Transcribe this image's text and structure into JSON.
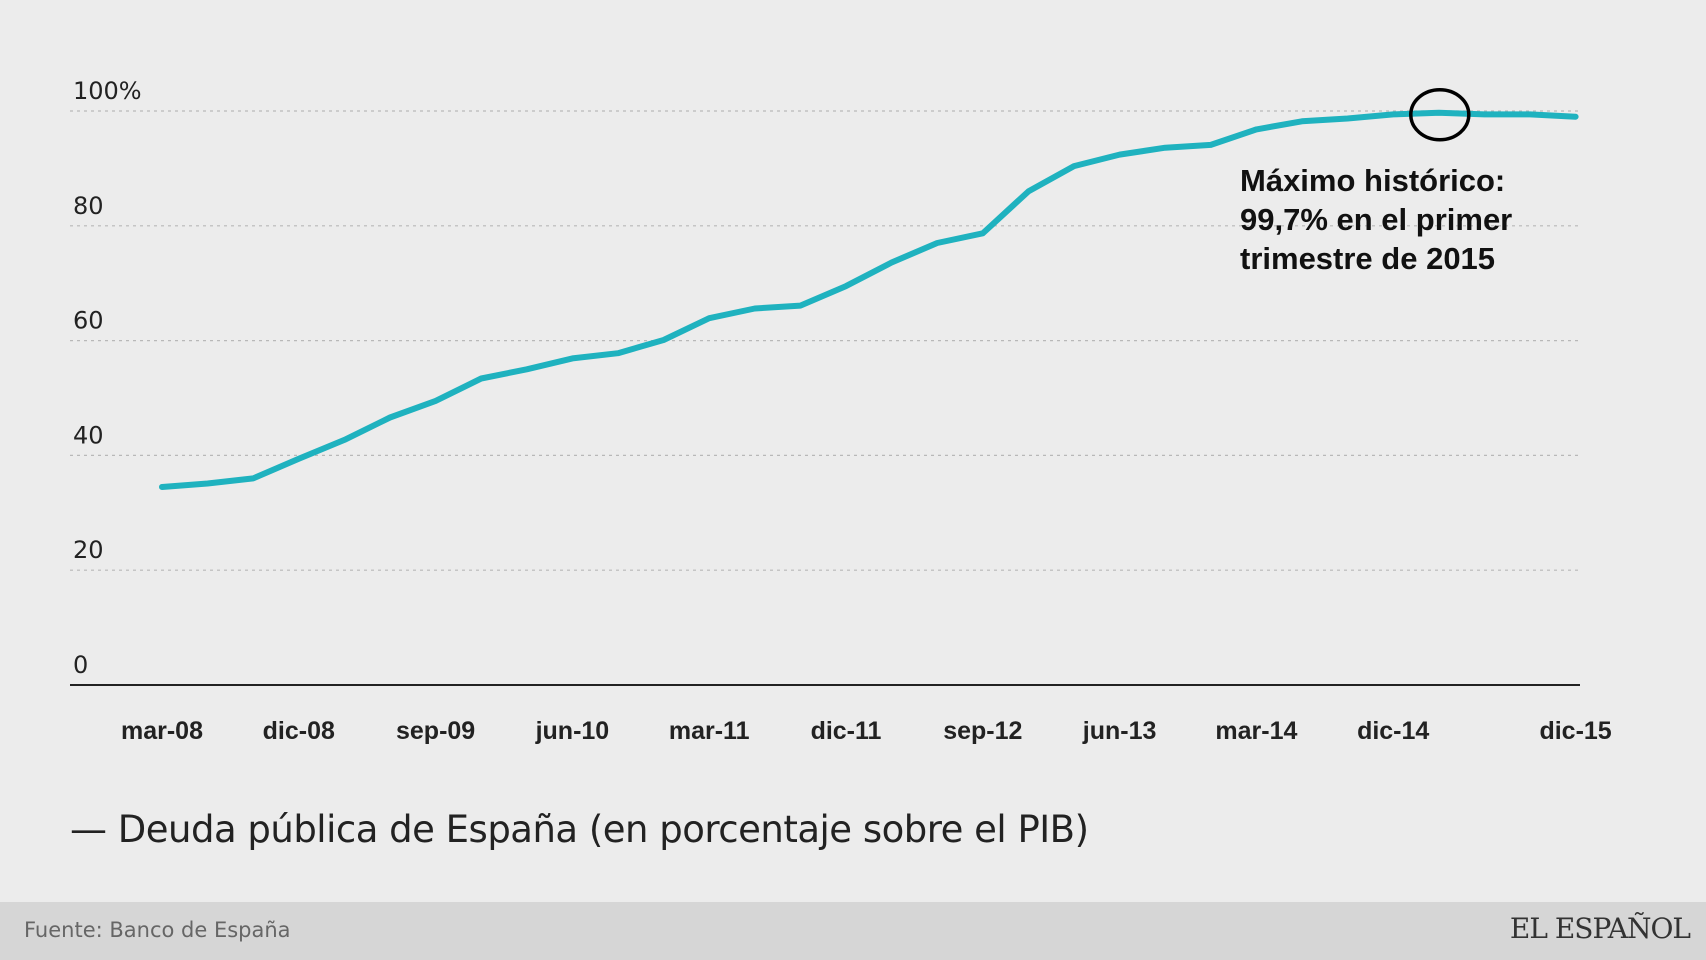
{
  "chart_data": {
    "type": "line",
    "x": [
      "mar-08",
      "jun-08",
      "sep-08",
      "dic-08",
      "mar-09",
      "jun-09",
      "sep-09",
      "dic-09",
      "mar-10",
      "jun-10",
      "sep-10",
      "dic-10",
      "mar-11",
      "jun-11",
      "sep-11",
      "dic-11",
      "mar-12",
      "jun-12",
      "sep-12",
      "dic-12",
      "mar-13",
      "jun-13",
      "sep-13",
      "dic-13",
      "mar-14",
      "jun-14",
      "sep-14",
      "dic-14",
      "mar-15",
      "jun-15",
      "sep-15",
      "dic-15"
    ],
    "x_tick_labels": [
      "mar-08",
      "dic-08",
      "sep-09",
      "jun-10",
      "mar-11",
      "dic-11",
      "sep-12",
      "jun-13",
      "mar-14",
      "dic-14",
      "dic-15"
    ],
    "series": [
      {
        "name": "Deuda pública de España (en porcentaje sobre el PIB)",
        "color": "#1fb2bf",
        "values": [
          34.5,
          35.1,
          36.0,
          39.4,
          42.7,
          46.6,
          49.5,
          53.4,
          55.0,
          56.9,
          57.8,
          60.1,
          63.9,
          65.6,
          66.1,
          69.5,
          73.6,
          77.0,
          78.7,
          86.0,
          90.4,
          92.4,
          93.6,
          94.1,
          96.8,
          98.2,
          98.7,
          99.4,
          99.7,
          99.4,
          99.4,
          99.0
        ]
      }
    ],
    "y_ticks": [
      "0",
      "20",
      "40",
      "60",
      "80",
      "100%"
    ],
    "ylim": [
      0,
      100
    ],
    "grid": "horizontal dotted",
    "annotation": {
      "lines": [
        "Máximo histórico:",
        "99,7% en el primer",
        "trimestre de 2015"
      ],
      "target_index": 28
    }
  },
  "legend_text": "— Deuda pública de España (en porcentaje sobre el PIB)",
  "footer": {
    "source": "Fuente: Banco de España",
    "logo_text": "EL ESPAÑOL"
  }
}
